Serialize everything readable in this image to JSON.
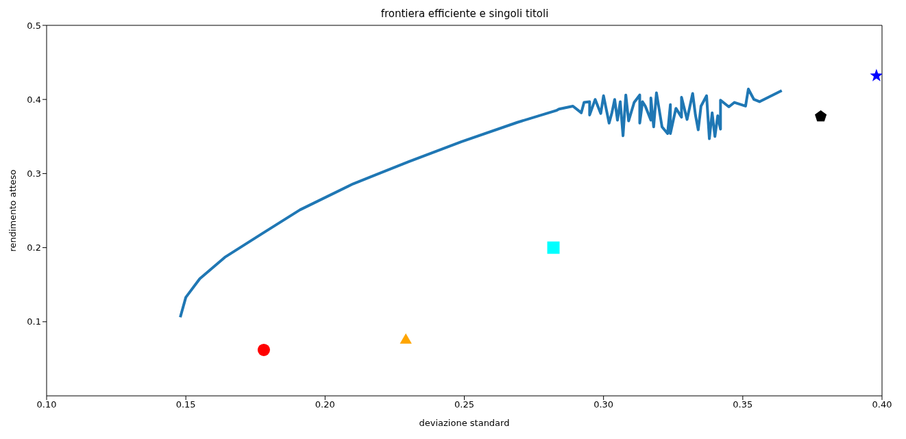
{
  "chart_data": {
    "type": "line",
    "title": "frontiera efficiente e singoli titoli",
    "xlabel": "deviazione standard",
    "ylabel": "rendimento atteso",
    "xlim": [
      0.1,
      0.4
    ],
    "xticks": [
      {
        "value": 0.1,
        "label": "0.10"
      },
      {
        "value": 0.15,
        "label": "0.15"
      },
      {
        "value": 0.2,
        "label": "0.20"
      },
      {
        "value": 0.25,
        "label": "0.25"
      },
      {
        "value": 0.3,
        "label": "0.30"
      },
      {
        "value": 0.35,
        "label": "0.35"
      },
      {
        "value": 0.4,
        "label": "0.40"
      }
    ],
    "ylim": [
      0,
      0.5
    ],
    "yticks": [
      0.1,
      0.2,
      0.3,
      0.4,
      0.5
    ],
    "grid": false,
    "legend": false,
    "series": [
      {
        "color": "#1f77b4",
        "marker": "none",
        "line_style": "solid",
        "x": [
          0.148,
          0.15,
          0.155,
          0.164,
          0.177,
          0.191,
          0.21,
          0.23,
          0.249,
          0.269,
          0.283,
          0.284,
          0.289,
          0.292,
          0.293,
          0.295,
          0.295,
          0.297,
          0.299,
          0.3,
          0.302,
          0.303,
          0.304,
          0.305,
          0.306,
          0.307,
          0.308,
          0.309,
          0.311,
          0.313,
          0.313,
          0.314,
          0.315,
          0.317,
          0.317,
          0.318,
          0.319,
          0.321,
          0.323,
          0.324,
          0.324,
          0.326,
          0.328,
          0.328,
          0.33,
          0.332,
          0.333,
          0.334,
          0.335,
          0.337,
          0.338,
          0.339,
          0.34,
          0.341,
          0.342,
          0.342,
          0.345,
          0.347,
          0.351,
          0.352,
          0.354,
          0.356,
          0.364
        ],
        "values": [
          0.106,
          0.133,
          0.158,
          0.187,
          0.218,
          0.251,
          0.286,
          0.316,
          0.343,
          0.369,
          0.385,
          0.387,
          0.391,
          0.382,
          0.396,
          0.397,
          0.379,
          0.4,
          0.381,
          0.405,
          0.368,
          0.382,
          0.4,
          0.372,
          0.397,
          0.351,
          0.406,
          0.371,
          0.396,
          0.406,
          0.368,
          0.397,
          0.391,
          0.372,
          0.402,
          0.363,
          0.409,
          0.363,
          0.354,
          0.393,
          0.354,
          0.388,
          0.376,
          0.403,
          0.373,
          0.408,
          0.379,
          0.359,
          0.391,
          0.405,
          0.347,
          0.382,
          0.35,
          0.378,
          0.36,
          0.399,
          0.39,
          0.396,
          0.391,
          0.414,
          0.4,
          0.397,
          0.412
        ]
      },
      {
        "type": "scatter",
        "color": "#ff0000",
        "marker": "circle",
        "x": [
          0.178
        ],
        "values": [
          0.062
        ]
      },
      {
        "type": "scatter",
        "color": "#0000ff",
        "marker": "star",
        "x": [
          0.398
        ],
        "values": [
          0.432
        ]
      },
      {
        "type": "scatter",
        "color": "#ffa500",
        "marker": "triangle",
        "x": [
          0.229
        ],
        "values": [
          0.077
        ]
      },
      {
        "type": "scatter",
        "color": "#000000",
        "x": [
          0.378
        ],
        "values": [
          0.377
        ]
      },
      {
        "type": "scatter",
        "color": "#00ffff",
        "marker": "square",
        "x": [
          0.282
        ],
        "values": [
          0.2
        ]
      }
    ]
  }
}
